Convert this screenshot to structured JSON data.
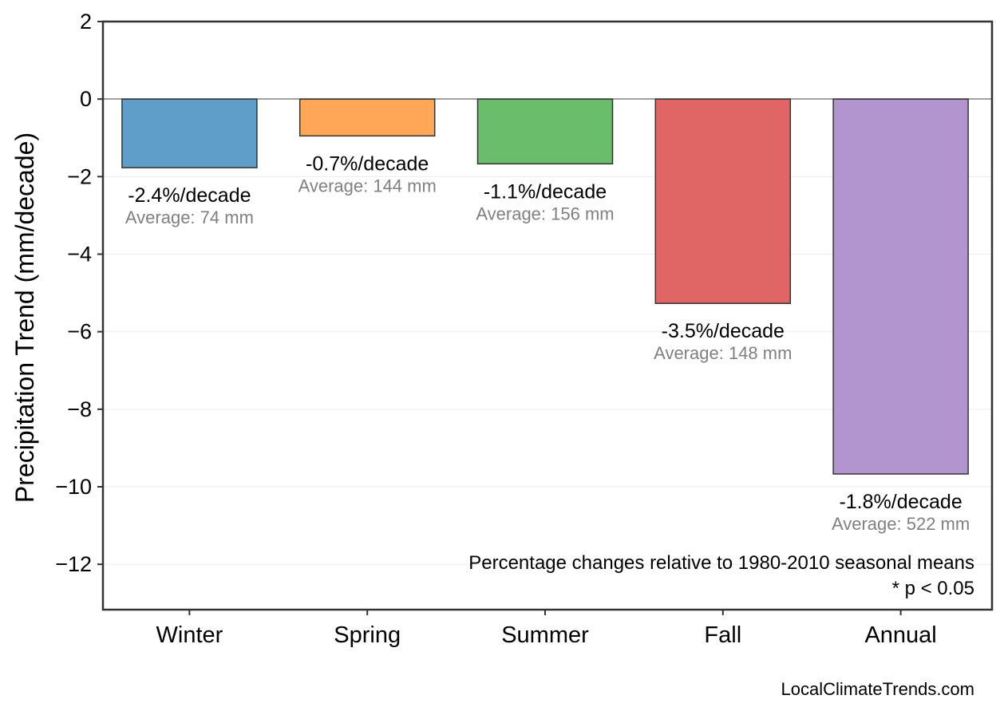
{
  "chart_data": {
    "type": "bar",
    "categories": [
      "Winter",
      "Spring",
      "Summer",
      "Fall",
      "Annual"
    ],
    "values": [
      -1.77,
      -0.95,
      -1.67,
      -5.27,
      -9.67
    ],
    "colors": [
      "#5f9ec9",
      "#ffa657",
      "#6abd6a",
      "#e06666",
      "#b294cf"
    ],
    "percent_labels": [
      "-2.4%/decade",
      "-0.7%/decade",
      "-1.1%/decade",
      "-3.5%/decade",
      "-1.8%/decade"
    ],
    "average_labels": [
      "Average: 74 mm",
      "Average: 144 mm",
      "Average: 156 mm",
      "Average: 148 mm",
      "Average: 522 mm"
    ],
    "ylabel": "Precipitation Trend (mm/decade)",
    "xlabel": "",
    "ylim": [
      -13.17,
      2
    ],
    "yticks": [
      2,
      0,
      -2,
      -4,
      -6,
      -8,
      -10,
      -12
    ],
    "ytick_labels": [
      "2",
      "0",
      "−2",
      "−4",
      "−6",
      "−8",
      "−10",
      "−12"
    ],
    "grid": true,
    "annotations": [
      "Percentage changes relative to 1980-2010 seasonal means",
      "* p < 0.05"
    ],
    "credit": "LocalClimateTrends.com"
  }
}
